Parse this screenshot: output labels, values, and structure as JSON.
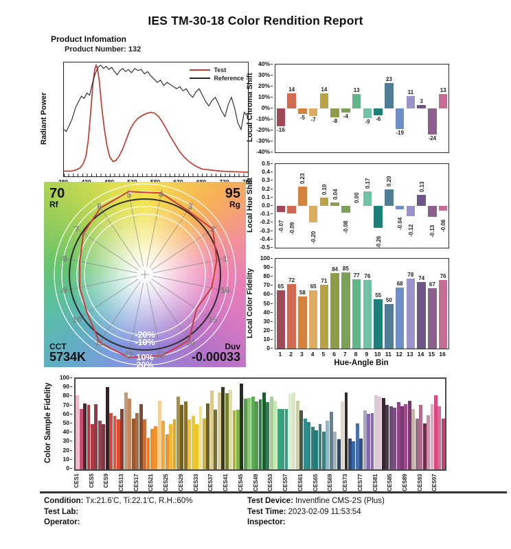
{
  "title": "IES TM-30-18 Color Rendition Report",
  "product": {
    "heading": "Product Infomation",
    "number_label": "Product Number:",
    "number": "132"
  },
  "palette16": [
    "#a04959",
    "#cf6b52",
    "#d3823f",
    "#ddab62",
    "#b9a34a",
    "#8f9b48",
    "#7ba154",
    "#62b589",
    "#71c2a5",
    "#1e7e78",
    "#4e7d94",
    "#6e8ec6",
    "#9a93ca",
    "#6f5588",
    "#8c5f8e",
    "#c76d95"
  ],
  "chart_data": [
    {
      "id": "spd",
      "type": "line",
      "ylabel": "Radiant Power",
      "xlim": [
        380,
        780
      ],
      "x_ticks": [
        "380",
        "430",
        "480",
        "530",
        "580",
        "630",
        "680",
        "730",
        "780"
      ],
      "legend": [
        {
          "name": "Test",
          "color": "#c0392b"
        },
        {
          "name": "Reference",
          "color": "#222222"
        }
      ],
      "series": [
        {
          "name": "Test",
          "color": "#c0392b",
          "x": [
            380,
            395,
            405,
            415,
            422,
            428,
            433,
            438,
            443,
            447,
            450,
            453,
            457,
            462,
            468,
            474,
            480,
            487,
            493,
            500,
            508,
            516,
            524,
            532,
            540,
            550,
            560,
            570,
            578,
            586,
            594,
            602,
            612,
            622,
            632,
            642,
            652,
            665,
            680,
            700,
            720,
            750,
            780
          ],
          "y": [
            0.01,
            0.01,
            0.02,
            0.04,
            0.08,
            0.15,
            0.3,
            0.55,
            0.82,
            0.96,
            1.0,
            0.97,
            0.85,
            0.62,
            0.4,
            0.24,
            0.14,
            0.1,
            0.11,
            0.15,
            0.22,
            0.31,
            0.4,
            0.46,
            0.5,
            0.53,
            0.55,
            0.56,
            0.55,
            0.52,
            0.47,
            0.41,
            0.33,
            0.26,
            0.19,
            0.14,
            0.1,
            0.06,
            0.03,
            0.02,
            0.01,
            0.005,
            0.0
          ]
        },
        {
          "name": "Reference",
          "color": "#222222",
          "x": [
            380,
            385,
            392,
            398,
            405,
            412,
            418,
            424,
            430,
            436,
            442,
            448,
            454,
            460,
            466,
            472,
            478,
            484,
            490,
            496,
            502,
            508,
            514,
            520,
            527,
            534,
            541,
            548,
            555,
            562,
            569,
            576,
            583,
            590,
            597,
            604,
            611,
            618,
            625,
            632,
            639,
            646,
            653,
            660,
            667,
            674,
            681,
            688,
            695,
            702,
            709,
            716,
            723,
            730,
            737,
            744,
            751,
            758,
            765,
            772,
            780
          ],
          "y": [
            0.4,
            0.38,
            0.44,
            0.5,
            0.6,
            0.66,
            0.71,
            0.69,
            0.74,
            0.72,
            0.83,
            0.92,
            0.98,
            1.0,
            0.97,
            0.99,
            0.96,
            0.98,
            0.94,
            0.91,
            0.95,
            0.97,
            0.94,
            0.96,
            0.93,
            0.97,
            0.95,
            0.96,
            0.92,
            0.94,
            0.9,
            0.87,
            0.84,
            0.86,
            0.81,
            0.84,
            0.82,
            0.8,
            0.78,
            0.8,
            0.76,
            0.78,
            0.73,
            0.7,
            0.75,
            0.78,
            0.72,
            0.66,
            0.62,
            0.67,
            0.7,
            0.64,
            0.57,
            0.52,
            0.63,
            0.7,
            0.6,
            0.46,
            0.4,
            0.56,
            0.52
          ]
        }
      ]
    },
    {
      "id": "chroma",
      "type": "bar",
      "ylabel": "Local Chroma Shift",
      "ylim": [
        -40,
        40
      ],
      "yticks": [
        "40%",
        "30%",
        "20%",
        "10%",
        "0%",
        "-10%",
        "-20%",
        "-30%",
        "-40%"
      ],
      "bins": [
        1,
        2,
        3,
        4,
        5,
        6,
        7,
        8,
        9,
        10,
        11,
        12,
        13,
        14,
        15,
        16
      ],
      "values": [
        -16,
        14,
        -5,
        -7,
        14,
        -8,
        -4,
        13,
        -9,
        -6,
        23,
        -19,
        11,
        3,
        -24,
        13
      ]
    },
    {
      "id": "hue",
      "type": "bar",
      "ylabel": "Local Hue Shift",
      "ylim": [
        -0.5,
        0.5
      ],
      "yticks": [
        "0.5",
        "0.4",
        "0.3",
        "0.2",
        "0.1",
        "0.0",
        "-0.1",
        "-0.2",
        "-0.3",
        "-0.4",
        "-0.5"
      ],
      "bins": [
        1,
        2,
        3,
        4,
        5,
        6,
        7,
        8,
        9,
        10,
        11,
        12,
        13,
        14,
        15,
        16
      ],
      "values": [
        -0.07,
        -0.09,
        0.23,
        -0.2,
        0.1,
        0.04,
        -0.08,
        0.0,
        0.17,
        -0.26,
        0.2,
        -0.04,
        -0.12,
        0.13,
        -0.13,
        -0.06
      ]
    },
    {
      "id": "fidelity",
      "type": "bar",
      "ylabel": "Local Color Fidelity",
      "xlabel": "Hue-Angle Bin",
      "ylim": [
        0,
        100
      ],
      "yticks": [
        "100",
        "90",
        "80",
        "70",
        "60",
        "50",
        "40",
        "30",
        "20",
        "10",
        "0"
      ],
      "categories": [
        "1",
        "2",
        "3",
        "4",
        "5",
        "6",
        "7",
        "8",
        "9",
        "10",
        "11",
        "12",
        "13",
        "14",
        "15",
        "16"
      ],
      "values": [
        65,
        72,
        58,
        65,
        71,
        84,
        85,
        77,
        76,
        55,
        50,
        68,
        78,
        74,
        67,
        76
      ]
    },
    {
      "id": "cvg",
      "type": "radar",
      "rf": {
        "value": "70",
        "label": "Rf"
      },
      "rg": {
        "value": "95",
        "label": "Rg"
      },
      "cct": {
        "label": "CCT",
        "value": "5734K"
      },
      "duv": {
        "label": "Duv",
        "value": "-0.00033"
      },
      "ring_labels": [
        "-20%",
        "-10%",
        "10%",
        "20%"
      ],
      "ring_scales": [
        0.8,
        0.9,
        1.1,
        1.2
      ],
      "bin_numbers": [
        "1",
        "2",
        "3",
        "4",
        "5",
        "6",
        "7",
        "8",
        "9",
        "10",
        "11",
        "12",
        "13",
        "14",
        "15",
        "16"
      ],
      "test_radii": [
        0.97,
        1.08,
        1.02,
        1.1,
        1.12,
        1.06,
        0.98,
        0.88,
        0.88,
        0.92,
        1.08,
        1.12,
        1.1,
        1.05,
        0.82,
        0.9
      ],
      "test_color": "#cc3b3b",
      "reference_color": "#2e2e2e"
    },
    {
      "id": "ces",
      "type": "bar",
      "ylabel": "Color Sample Fidelity",
      "ylim": [
        0,
        100
      ],
      "yticks": [
        "100",
        "90",
        "80",
        "70",
        "60",
        "50",
        "40",
        "30",
        "20",
        "10",
        "0"
      ],
      "x_tick_labels": [
        "CES1",
        "CES5",
        "CES9",
        "CES13",
        "CES17",
        "CES21",
        "CES25",
        "CES29",
        "CES33",
        "CES37",
        "CES41",
        "CES45",
        "CES49",
        "CES53",
        "CES57",
        "CES61",
        "CES65",
        "CES69",
        "CES73",
        "CES77",
        "CES81",
        "CES85",
        "CES89",
        "CES93",
        "CES97"
      ],
      "values": [
        82,
        67,
        73,
        71,
        50,
        72,
        54,
        50,
        91,
        62,
        59,
        55,
        67,
        85,
        78,
        56,
        62,
        72,
        55,
        35,
        45,
        48,
        76,
        54,
        39,
        50,
        55,
        80,
        71,
        75,
        55,
        59,
        50,
        70,
        56,
        73,
        87,
        66,
        85,
        91,
        84,
        88,
        65,
        66,
        95,
        78,
        79,
        80,
        75,
        77,
        85,
        74,
        80,
        76,
        67,
        67,
        67,
        83,
        85,
        76,
        65,
        56,
        52,
        47,
        43,
        50,
        42,
        54,
        64,
        42,
        33,
        75,
        85,
        34,
        31,
        51,
        34,
        65,
        61,
        62,
        82,
        80,
        79,
        71,
        70,
        68,
        74,
        70,
        72,
        76,
        67,
        56,
        71,
        51,
        60,
        72,
        82,
        70,
        56
      ],
      "colors": [
        "#f2bac8",
        "#c94f72",
        "#3f2a30",
        "#b73946",
        "#a93c49",
        "#8e3d47",
        "#9b4350",
        "#7d3745",
        "#332227",
        "#d6483c",
        "#df5440",
        "#d84b35",
        "#8f3b2e",
        "#c89775",
        "#c08a60",
        "#96582f",
        "#aa6b42",
        "#84492c",
        "#c87038",
        "#e67e22",
        "#ef8c28",
        "#f29330",
        "#f6cf92",
        "#efa83a",
        "#ed9630",
        "#f0b83c",
        "#d8a934",
        "#a8913c",
        "#6d6028",
        "#89702f",
        "#f2c033",
        "#eec62e",
        "#edc22a",
        "#f6e08a",
        "#ccb23e",
        "#6a5e2b",
        "#d8ca90",
        "#7a6c34",
        "#dbcd8c",
        "#3a3722",
        "#76812e",
        "#e4daa6",
        "#a9b23b",
        "#7cb24a",
        "#233220",
        "#58a14c",
        "#8ec47e",
        "#5faa55",
        "#4d9d4f",
        "#2f7d3f",
        "#1d5c31",
        "#2f8149",
        "#a6d395",
        "#cbe7b8",
        "#3aa47b",
        "#35a17f",
        "#309c81",
        "#e2eed4",
        "#d8e8c2",
        "#cfd0a0",
        "#4b5446",
        "#2e8f8a",
        "#2a8a88",
        "#27827f",
        "#1f7a78",
        "#45807f",
        "#2d8587",
        "#8fb8c2",
        "#6a7f8a",
        "#9fb4bd",
        "#2e4668",
        "#dcd9cc",
        "#2d2d2d",
        "#2c4a74",
        "#3566a8",
        "#4a6fae",
        "#2f5187",
        "#a8a4c8",
        "#7f6aaa",
        "#8468a8",
        "#dcc8d8",
        "#e0c9d2",
        "#332631",
        "#4f3350",
        "#6f4a78",
        "#7a4e80",
        "#8f4588",
        "#7c3a72",
        "#a04a8c",
        "#6f3d68",
        "#c9b49a",
        "#9c6b85",
        "#b06a8a",
        "#6b2f4a",
        "#d98aa8",
        "#e8a8bc",
        "#d8487c",
        "#d66a96",
        "#cc3f72"
      ]
    }
  ],
  "footer": {
    "left": [
      {
        "label": "Condition:",
        "value": "Tx:21.6'C, Ti:22.1'C, R.H.:60%"
      },
      {
        "label": "Test Lab:",
        "value": ""
      },
      {
        "label": "Operator:",
        "value": ""
      }
    ],
    "right": [
      {
        "label": "Test Device:",
        "value": "Inventfine CMS-2S (Plus)"
      },
      {
        "label": "Test Time:",
        "value": "2023-02-09 11:53:54"
      },
      {
        "label": "Inspector:",
        "value": ""
      }
    ]
  }
}
